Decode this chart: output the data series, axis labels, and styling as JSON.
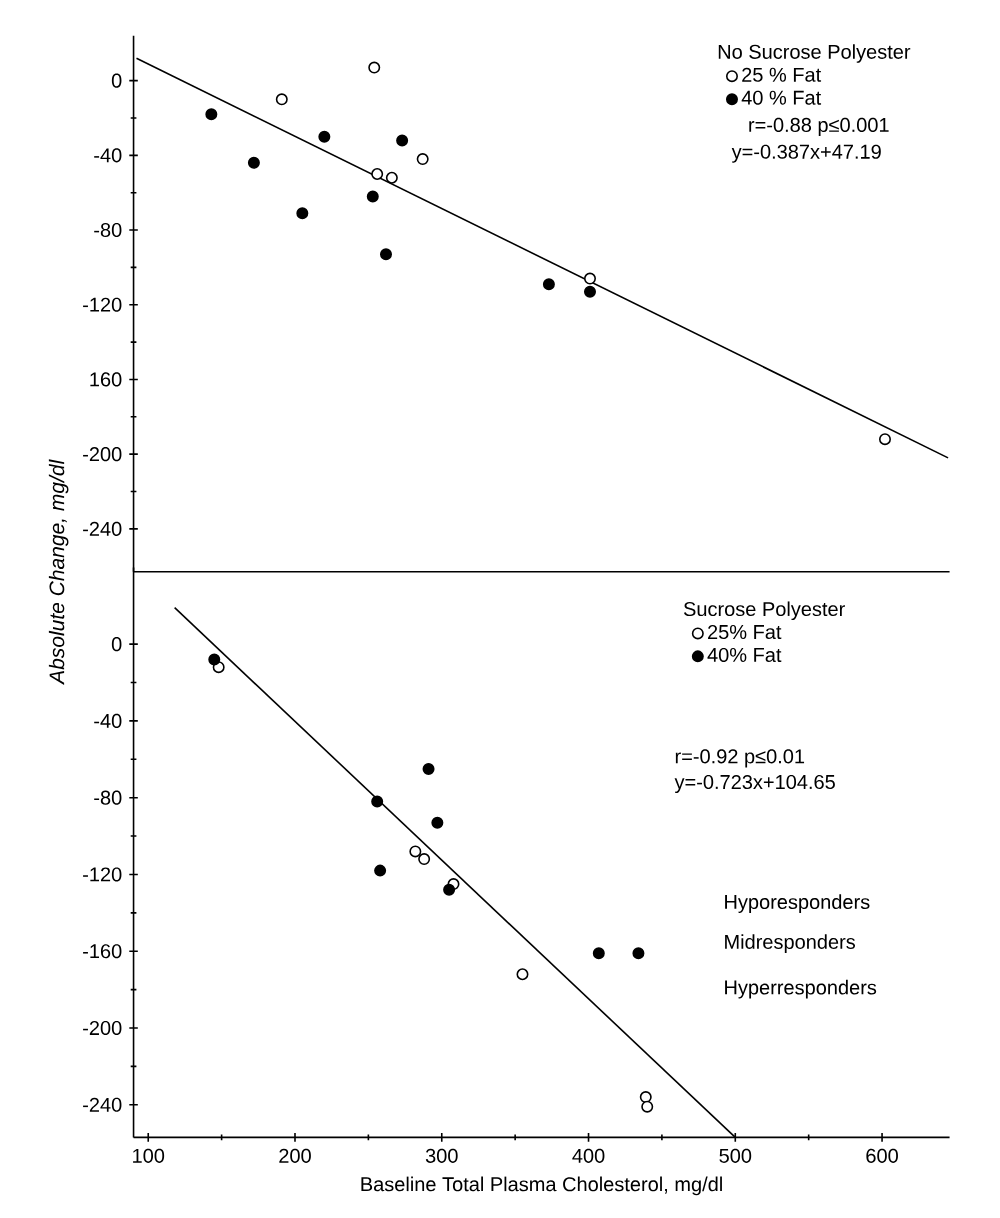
{
  "chart_data": [
    {
      "type": "scatter",
      "legend_title": "No Sucrose Polyester",
      "ylabel": "Absolute Change, mg/dl",
      "marker": "circle",
      "legend": "top right",
      "tick_labels": "y",
      "xlim": [
        90,
        646
      ],
      "ylim": [
        -263,
        24
      ],
      "yticks": [
        0,
        -40,
        -80,
        -120,
        {
          "value": -160,
          "label": "160"
        },
        -200,
        -240
      ],
      "series": [
        {
          "name": "25 % Fat",
          "color": "#000000",
          "x": [
            191,
            254,
            287,
            256,
            266,
            401,
            602
          ],
          "values": [
            -10,
            7,
            -42,
            -50,
            -52,
            -106,
            -192
          ]
        },
        {
          "name": "40 % Fat",
          "color": "#000000",
          "x": [
            143,
            172,
            205,
            220,
            273,
            253,
            262,
            373,
            401
          ],
          "values": [
            -18,
            -44,
            -71,
            -30,
            -32,
            -62,
            -93,
            -109,
            -113
          ]
        },
        {
          "type": "line",
          "marker": "none",
          "color": "#000000",
          "x": [
            92,
            645
          ],
          "values": [
            12,
            -202
          ]
        }
      ],
      "annotations": [
        "r=-0.88  p≤0.001",
        "y=-0.387x+47.19"
      ]
    },
    {
      "type": "scatter",
      "legend_title": "Sucrose Polyester",
      "xlabel": "Baseline Total Plasma Cholesterol, mg/dl",
      "marker": "circle",
      "legend": "top right",
      "xlim": [
        90,
        646
      ],
      "ylim": [
        -257,
        40
      ],
      "xticks": [
        100,
        200,
        300,
        400,
        500,
        600
      ],
      "yticks": [
        0,
        -40,
        -80,
        -120,
        -160,
        -200,
        -240
      ],
      "series": [
        {
          "name": "25% Fat",
          "color": "#000000",
          "x": [
            148,
            282,
            288,
            308,
            355,
            439,
            440
          ],
          "values": [
            -12,
            -108,
            -112,
            -125,
            -172,
            -236,
            -241
          ]
        },
        {
          "name": "40% Fat",
          "color": "#000000",
          "x": [
            145,
            256,
            291,
            297,
            258,
            305,
            407,
            434
          ],
          "values": [
            -8,
            -82,
            -65,
            -93,
            -118,
            -128,
            -161,
            -161
          ]
        },
        {
          "type": "line",
          "marker": "none",
          "color": "#000000",
          "x": [
            118,
            500
          ],
          "values": [
            19,
            -257
          ]
        }
      ],
      "annotations": [
        "r=-0.92  p≤0.01",
        "y=-0.723x+104.65",
        "Hyporesponders",
        "Midresponders",
        "Hyperresponders"
      ]
    }
  ]
}
